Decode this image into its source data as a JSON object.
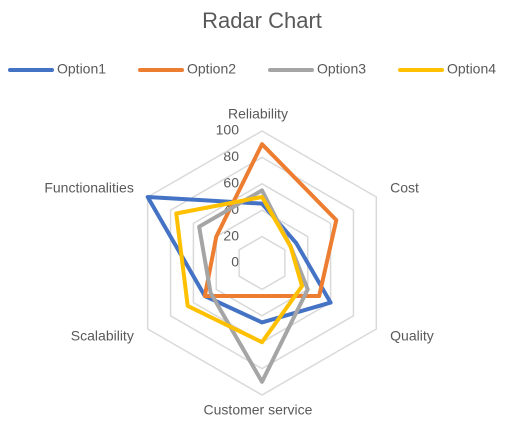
{
  "chart_data": {
    "type": "radar",
    "title": "Radar Chart",
    "categories": [
      "Reliability",
      "Cost",
      "Quality",
      "Customer service",
      "Scalability",
      "Functionalities"
    ],
    "series": [
      {
        "name": "Option1",
        "color": "#4472c4",
        "values": [
          45,
          30,
          60,
          45,
          50,
          100
        ]
      },
      {
        "name": "Option2",
        "color": "#ed7d31",
        "values": [
          90,
          65,
          50,
          25,
          50,
          40
        ]
      },
      {
        "name": "Option3",
        "color": "#a5a5a5",
        "values": [
          55,
          25,
          40,
          90,
          45,
          55
        ]
      },
      {
        "name": "Option4",
        "color": "#ffc000",
        "values": [
          50,
          25,
          35,
          60,
          65,
          75
        ]
      }
    ],
    "ylim": [
      0,
      100
    ],
    "yticks": [
      0,
      20,
      40,
      60,
      80,
      100
    ],
    "grid": true,
    "legend": "top"
  }
}
